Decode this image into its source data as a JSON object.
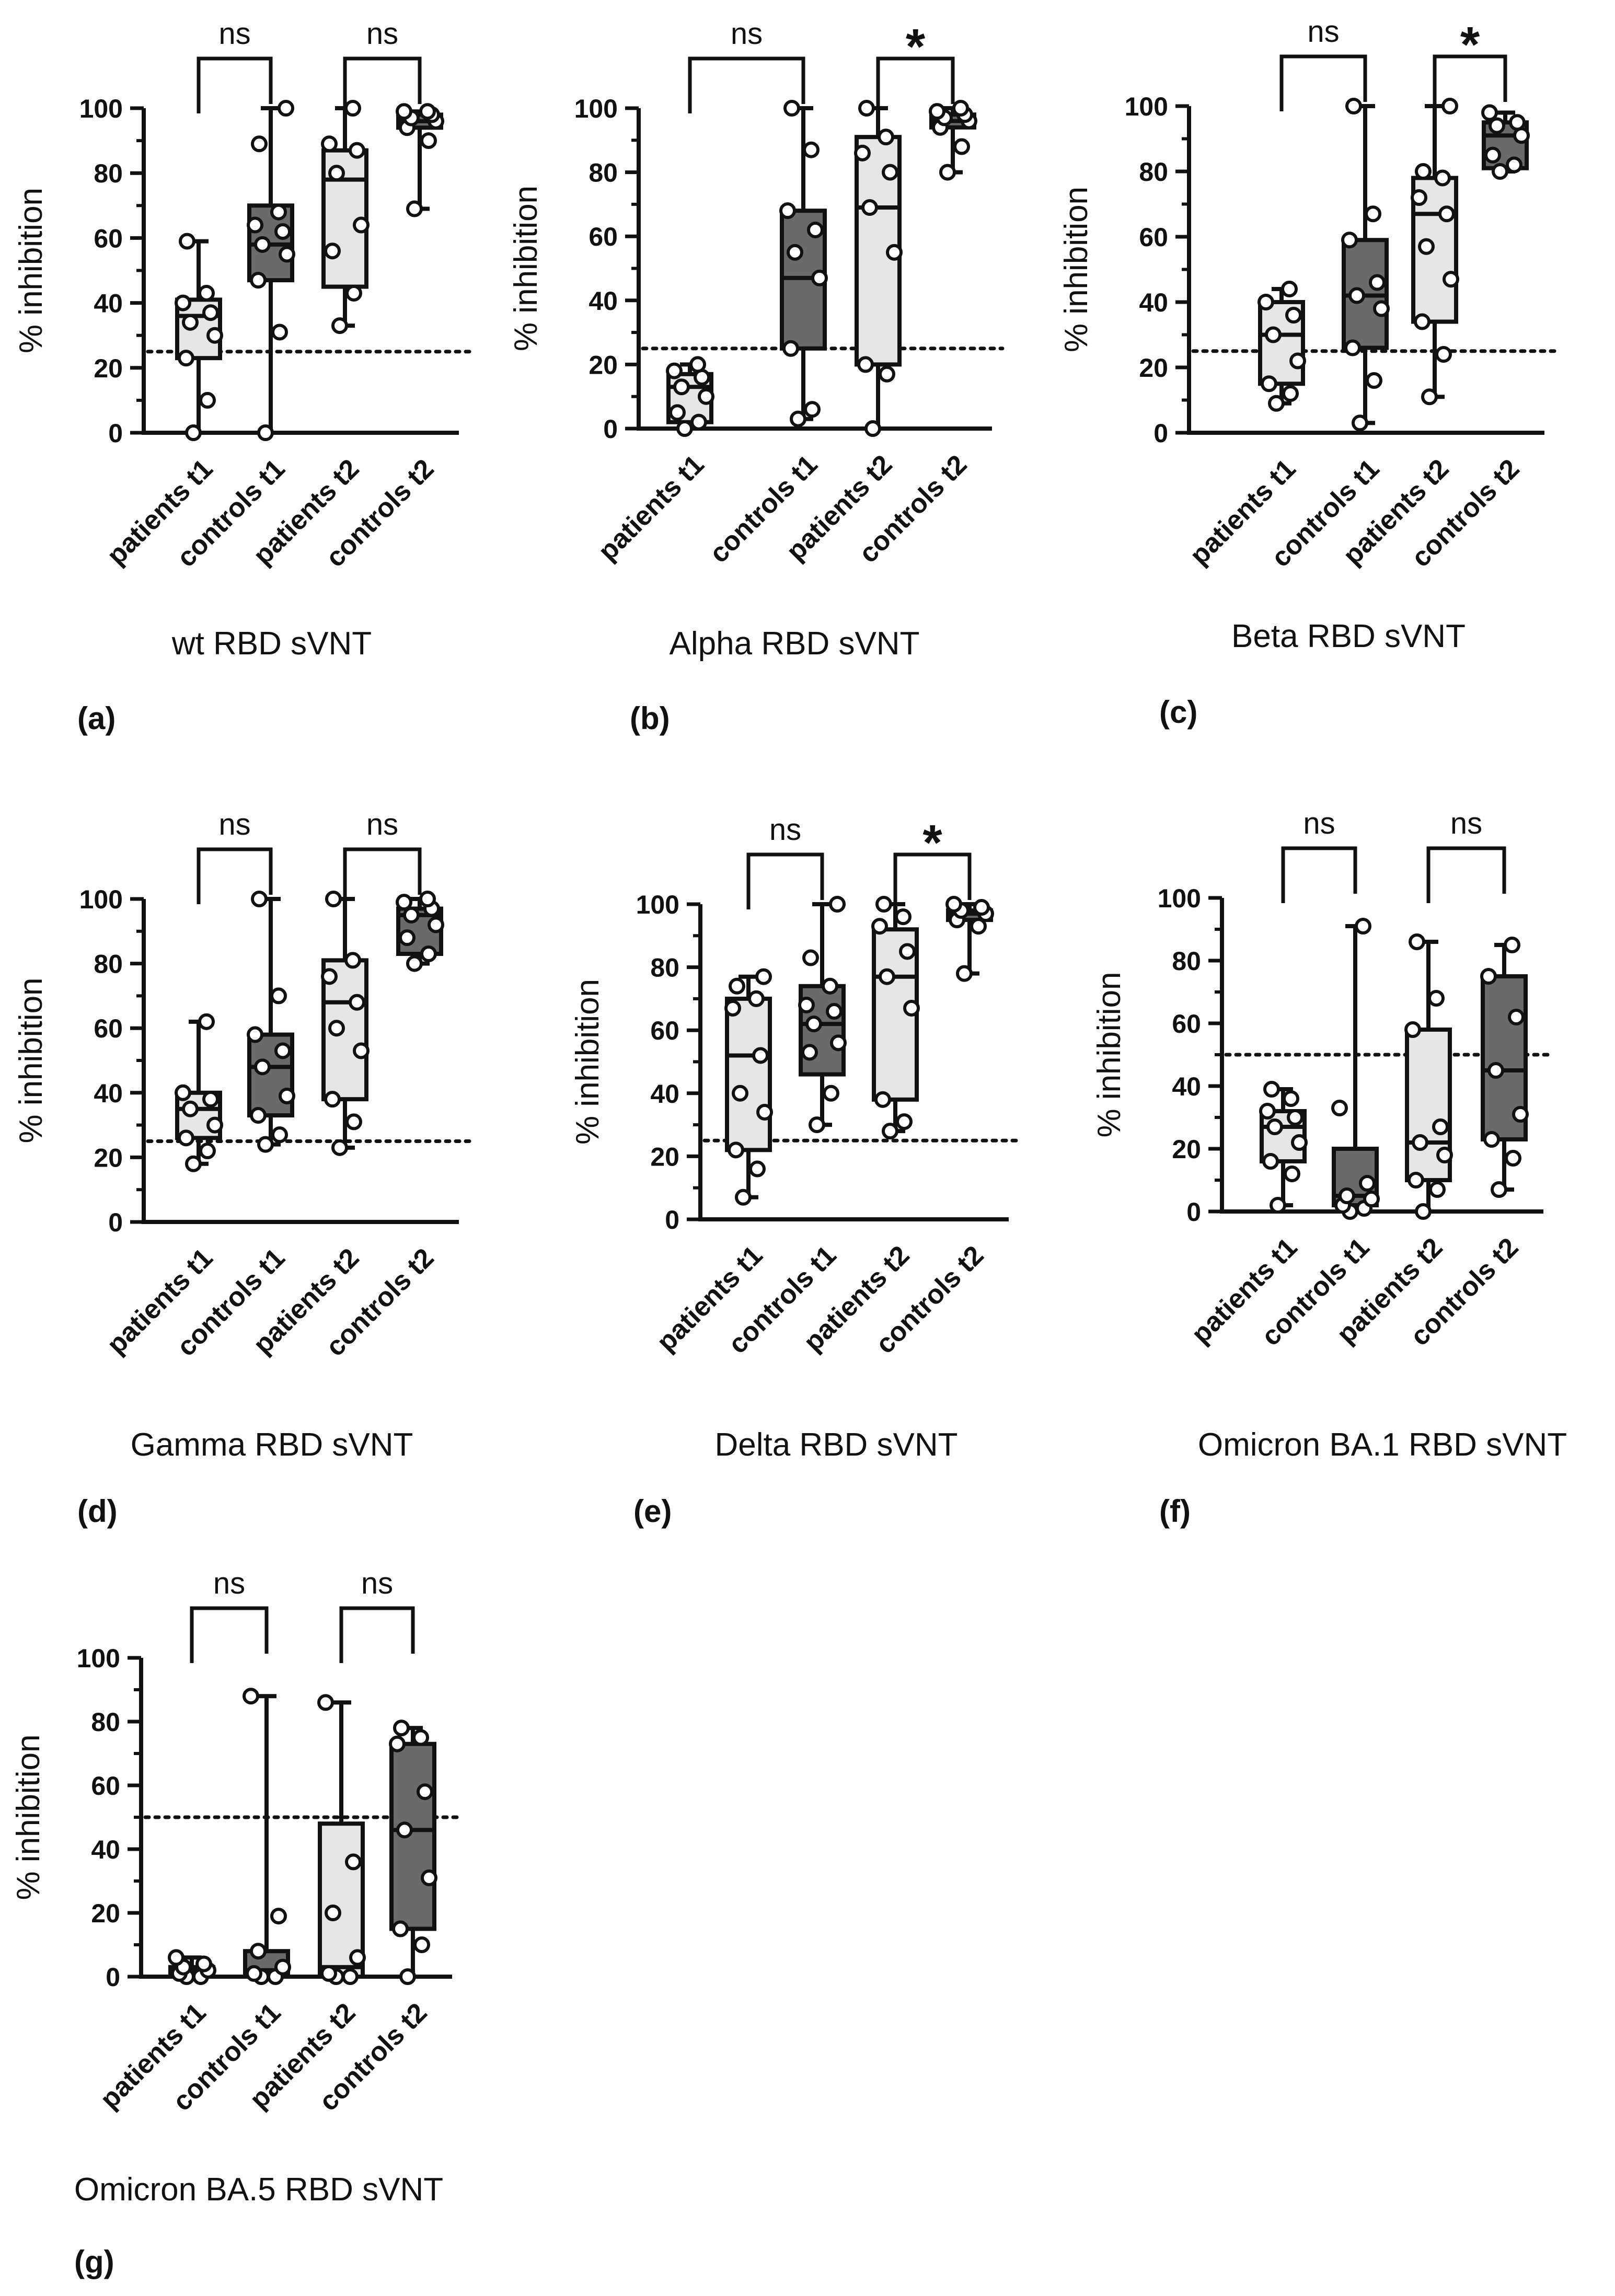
{
  "colors": {
    "patients_fill": "#e6e6e6",
    "controls_fill": "#6a6a6a",
    "stroke": "#111111",
    "point_fill": "#ffffff"
  },
  "chart_data": [
    {
      "type": "box",
      "panel_label": "(a)",
      "title": "wt RBD sVNT",
      "ylabel": "% inhibition",
      "ylim": [
        0,
        100
      ],
      "yticks": [
        0,
        20,
        40,
        60,
        80,
        100
      ],
      "threshold": 25,
      "categories": [
        "patients t1",
        "controls t1",
        "patients t2",
        "controls t2"
      ],
      "boxes": [
        {
          "group": "patients",
          "min": 0,
          "q1": 23,
          "median": 36,
          "q3": 41,
          "max": 59,
          "points": [
            0,
            10,
            23,
            30,
            34,
            37,
            40,
            43,
            59
          ]
        },
        {
          "group": "controls",
          "min": 0,
          "q1": 47,
          "median": 58,
          "q3": 70,
          "max": 100,
          "points": [
            0,
            31,
            47,
            55,
            58,
            62,
            64,
            68,
            89,
            100
          ]
        },
        {
          "group": "patients",
          "min": 33,
          "q1": 45,
          "median": 78,
          "q3": 87,
          "max": 100,
          "points": [
            33,
            43,
            56,
            64,
            80,
            87,
            89,
            100
          ]
        },
        {
          "group": "controls",
          "min": 69,
          "q1": 94,
          "median": 96,
          "q3": 98,
          "max": 99,
          "points": [
            69,
            90,
            94,
            96,
            97,
            98,
            99,
            99
          ]
        }
      ],
      "comparisons": [
        {
          "pair": [
            0,
            1
          ],
          "label": "ns"
        },
        {
          "pair": [
            2,
            3
          ],
          "label": "ns"
        }
      ]
    },
    {
      "type": "box",
      "panel_label": "(b)",
      "title": "Alpha RBD sVNT",
      "ylabel": "% inhibition",
      "ylim": [
        0,
        100
      ],
      "yticks": [
        0,
        20,
        40,
        60,
        80,
        100
      ],
      "threshold": 25,
      "categories": [
        "patients t1",
        "controls t1",
        "patients t2",
        "controls t2"
      ],
      "boxes": [
        {
          "group": "patients",
          "min": 0,
          "q1": 2,
          "median": 13,
          "q3": 17,
          "max": 20,
          "points": [
            0,
            2,
            5,
            10,
            13,
            16,
            18,
            20
          ]
        },
        {
          "group": "controls",
          "min": 3,
          "q1": 25,
          "median": 47,
          "q3": 68,
          "max": 100,
          "points": [
            3,
            6,
            25,
            47,
            55,
            62,
            68,
            87,
            100
          ]
        },
        {
          "group": "patients",
          "min": 0,
          "q1": 20,
          "median": 69,
          "q3": 91,
          "max": 100,
          "points": [
            0,
            17,
            20,
            55,
            69,
            80,
            86,
            91,
            100
          ]
        },
        {
          "group": "controls",
          "min": 80,
          "q1": 94,
          "median": 96,
          "q3": 98,
          "max": 100,
          "points": [
            80,
            88,
            94,
            96,
            97,
            98,
            99,
            100
          ]
        }
      ],
      "comparisons": [
        {
          "pair": [
            0,
            1
          ],
          "label": "ns"
        },
        {
          "pair": [
            2,
            3
          ],
          "label": "*"
        }
      ]
    },
    {
      "type": "box",
      "panel_label": "(c)",
      "title": "Beta RBD sVNT",
      "ylabel": "% inhibition",
      "ylim": [
        0,
        100
      ],
      "yticks": [
        0,
        20,
        40,
        60,
        80,
        100
      ],
      "threshold": 25,
      "categories": [
        "patients t1",
        "controls t1",
        "patients t2",
        "controls t2"
      ],
      "boxes": [
        {
          "group": "patients",
          "min": 9,
          "q1": 15,
          "median": 30,
          "q3": 40,
          "max": 44,
          "points": [
            9,
            12,
            15,
            22,
            30,
            36,
            40,
            44
          ]
        },
        {
          "group": "controls",
          "min": 3,
          "q1": 26,
          "median": 42,
          "q3": 59,
          "max": 100,
          "points": [
            3,
            16,
            26,
            38,
            42,
            46,
            59,
            67,
            100
          ]
        },
        {
          "group": "patients",
          "min": 11,
          "q1": 34,
          "median": 67,
          "q3": 78,
          "max": 100,
          "points": [
            11,
            24,
            34,
            47,
            57,
            67,
            72,
            78,
            80,
            100
          ]
        },
        {
          "group": "controls",
          "min": 80,
          "q1": 81,
          "median": 91,
          "q3": 95,
          "max": 98,
          "points": [
            80,
            82,
            85,
            91,
            94,
            95,
            98
          ]
        }
      ],
      "comparisons": [
        {
          "pair": [
            0,
            1
          ],
          "label": "ns"
        },
        {
          "pair": [
            2,
            3
          ],
          "label": "*"
        }
      ]
    },
    {
      "type": "box",
      "panel_label": "(d)",
      "title": "Gamma RBD sVNT",
      "ylabel": "% inhibition",
      "ylim": [
        0,
        100
      ],
      "yticks": [
        0,
        20,
        40,
        60,
        80,
        100
      ],
      "threshold": 25,
      "categories": [
        "patients t1",
        "controls t1",
        "patients t2",
        "controls t2"
      ],
      "boxes": [
        {
          "group": "patients",
          "min": 18,
          "q1": 26,
          "median": 35,
          "q3": 40,
          "max": 62,
          "points": [
            18,
            22,
            26,
            30,
            35,
            38,
            40,
            62
          ]
        },
        {
          "group": "controls",
          "min": 24,
          "q1": 33,
          "median": 48,
          "q3": 58,
          "max": 100,
          "points": [
            24,
            27,
            33,
            39,
            48,
            53,
            58,
            70,
            100
          ]
        },
        {
          "group": "patients",
          "min": 23,
          "q1": 38,
          "median": 68,
          "q3": 81,
          "max": 100,
          "points": [
            23,
            31,
            38,
            53,
            60,
            68,
            76,
            81,
            100
          ]
        },
        {
          "group": "controls",
          "min": 80,
          "q1": 83,
          "median": 95,
          "q3": 97,
          "max": 100,
          "points": [
            80,
            83,
            88,
            92,
            95,
            97,
            99,
            100
          ]
        }
      ],
      "comparisons": [
        {
          "pair": [
            0,
            1
          ],
          "label": "ns"
        },
        {
          "pair": [
            2,
            3
          ],
          "label": "ns"
        }
      ]
    },
    {
      "type": "box",
      "panel_label": "(e)",
      "title": "Delta RBD sVNT",
      "ylabel": "% inhibition",
      "ylim": [
        0,
        100
      ],
      "yticks": [
        0,
        20,
        40,
        60,
        80,
        100
      ],
      "threshold": 25,
      "categories": [
        "patients t1",
        "controls t1",
        "patients t2",
        "controls t2"
      ],
      "boxes": [
        {
          "group": "patients",
          "min": 7,
          "q1": 22,
          "median": 52,
          "q3": 70,
          "max": 77,
          "points": [
            7,
            16,
            22,
            34,
            40,
            52,
            67,
            70,
            74,
            77
          ]
        },
        {
          "group": "controls",
          "min": 30,
          "q1": 46,
          "median": 62,
          "q3": 74,
          "max": 100,
          "points": [
            30,
            40,
            53,
            56,
            62,
            66,
            68,
            74,
            83,
            100
          ]
        },
        {
          "group": "patients",
          "min": 28,
          "q1": 38,
          "median": 77,
          "q3": 92,
          "max": 100,
          "points": [
            28,
            31,
            38,
            67,
            77,
            85,
            93,
            96,
            100
          ]
        },
        {
          "group": "controls",
          "min": 78,
          "q1": 95,
          "median": 97,
          "q3": 98,
          "max": 100,
          "points": [
            78,
            93,
            95,
            97,
            98,
            99,
            100
          ]
        }
      ],
      "comparisons": [
        {
          "pair": [
            0,
            1
          ],
          "label": "ns"
        },
        {
          "pair": [
            2,
            3
          ],
          "label": "*"
        }
      ]
    },
    {
      "type": "box",
      "panel_label": "(f)",
      "title": "Omicron BA.1 RBD sVNT",
      "ylabel": "% inhibition",
      "ylim": [
        0,
        100
      ],
      "yticks": [
        0,
        20,
        40,
        60,
        80,
        100
      ],
      "threshold": 50,
      "categories": [
        "patients t1",
        "controls t1",
        "patients t2",
        "controls t2"
      ],
      "boxes": [
        {
          "group": "patients",
          "min": 2,
          "q1": 16,
          "median": 27,
          "q3": 32,
          "max": 39,
          "points": [
            2,
            12,
            16,
            22,
            27,
            30,
            32,
            36,
            39
          ]
        },
        {
          "group": "controls",
          "min": 0,
          "q1": 2,
          "median": 5,
          "q3": 20,
          "max": 91,
          "points": [
            0,
            1,
            2,
            4,
            5,
            9,
            33,
            91
          ]
        },
        {
          "group": "patients",
          "min": 0,
          "q1": 10,
          "median": 22,
          "q3": 58,
          "max": 86,
          "points": [
            0,
            7,
            10,
            18,
            22,
            27,
            58,
            68,
            86
          ]
        },
        {
          "group": "controls",
          "min": 7,
          "q1": 23,
          "median": 45,
          "q3": 75,
          "max": 85,
          "points": [
            7,
            17,
            23,
            31,
            45,
            62,
            75,
            85
          ]
        }
      ],
      "comparisons": [
        {
          "pair": [
            0,
            1
          ],
          "label": "ns"
        },
        {
          "pair": [
            2,
            3
          ],
          "label": "ns"
        }
      ]
    },
    {
      "type": "box",
      "panel_label": "(g)",
      "title": "Omicron BA.5 RBD sVNT",
      "ylabel": "% inhibition",
      "ylim": [
        0,
        100
      ],
      "yticks": [
        0,
        20,
        40,
        60,
        80,
        100
      ],
      "threshold": 50,
      "categories": [
        "patients t1",
        "controls t1",
        "patients t2",
        "controls t2"
      ],
      "boxes": [
        {
          "group": "patients",
          "min": 0,
          "q1": 0,
          "median": 2,
          "q3": 3,
          "max": 6,
          "points": [
            0,
            0,
            1,
            2,
            3,
            4,
            6
          ]
        },
        {
          "group": "controls",
          "min": 0,
          "q1": 0,
          "median": 2,
          "q3": 8,
          "max": 88,
          "points": [
            0,
            0,
            1,
            3,
            8,
            19,
            88
          ]
        },
        {
          "group": "patients",
          "min": 0,
          "q1": 0,
          "median": 3,
          "q3": 48,
          "max": 86,
          "points": [
            0,
            0,
            1,
            6,
            20,
            36,
            86
          ]
        },
        {
          "group": "controls",
          "min": 0,
          "q1": 15,
          "median": 46,
          "q3": 73,
          "max": 78,
          "points": [
            0,
            10,
            15,
            31,
            46,
            58,
            73,
            75,
            78
          ]
        }
      ],
      "comparisons": [
        {
          "pair": [
            0,
            1
          ],
          "label": "ns"
        },
        {
          "pair": [
            2,
            3
          ],
          "label": "ns"
        }
      ]
    }
  ]
}
